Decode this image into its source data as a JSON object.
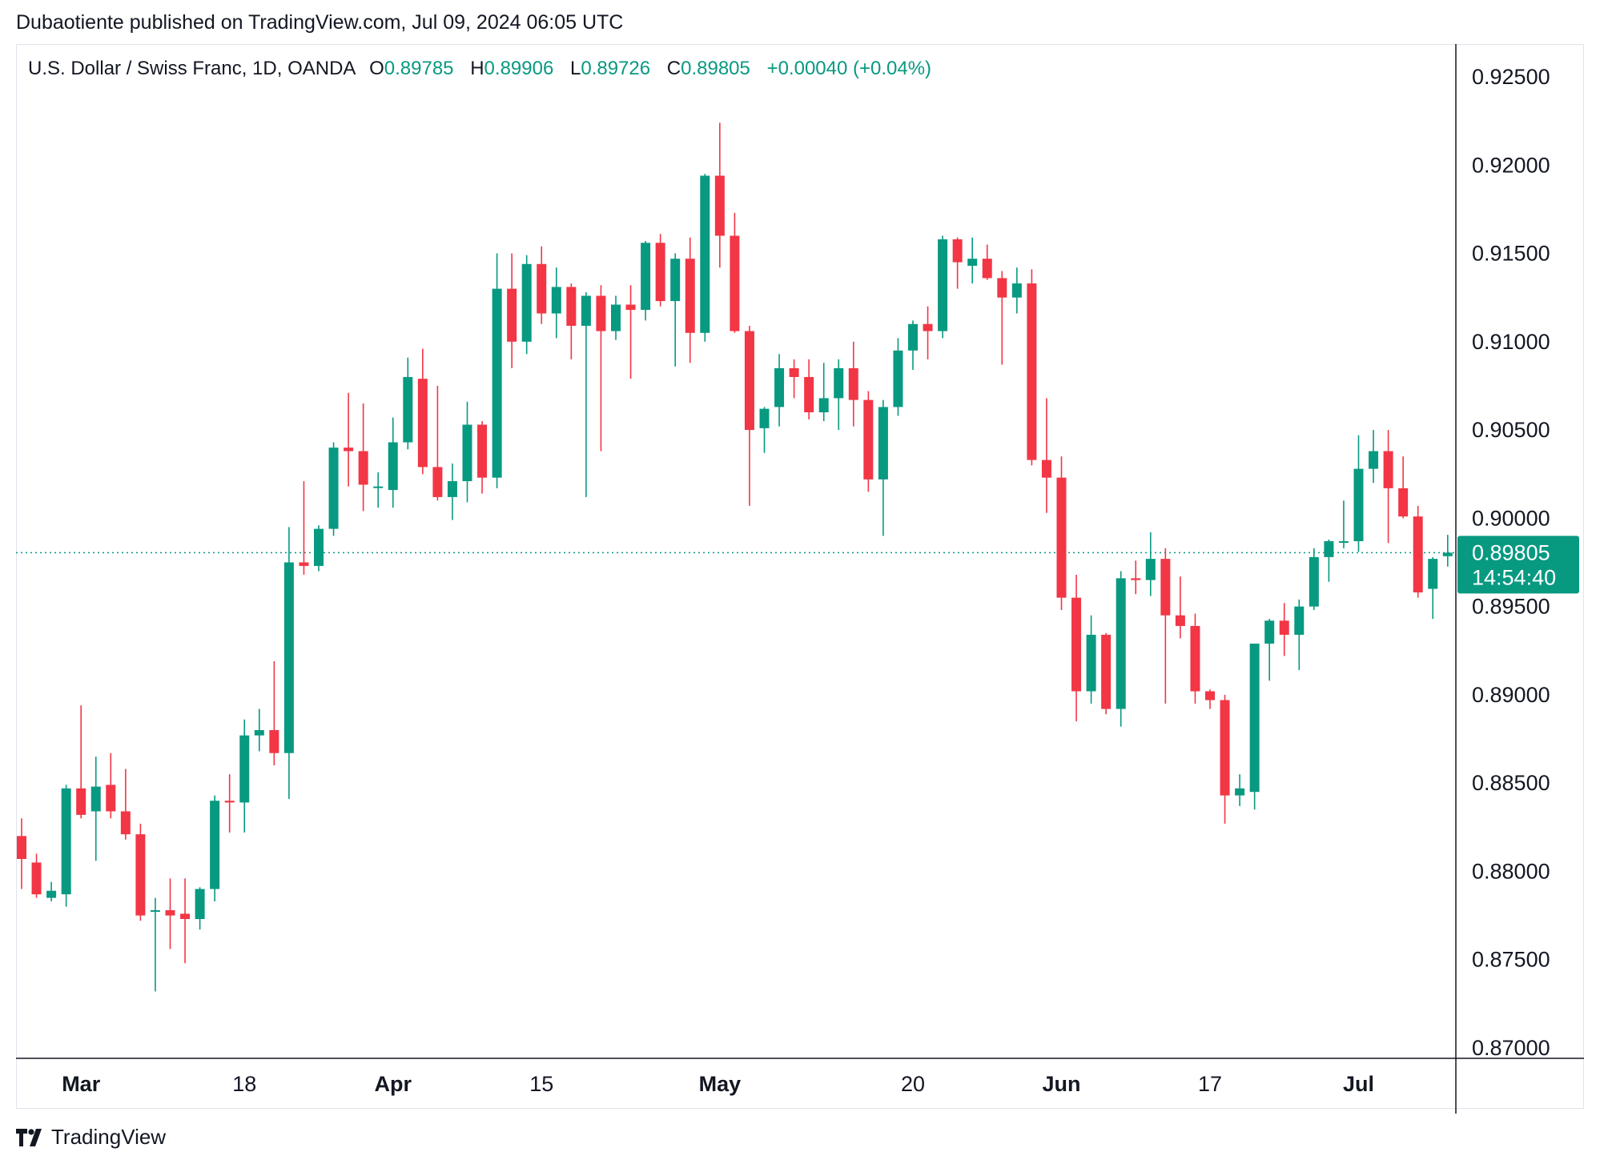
{
  "header": {
    "published": "Dubaotiente published on TradingView.com, Jul 09, 2024 06:05 UTC"
  },
  "legend": {
    "symbol": "U.S. Dollar / Swiss Franc, 1D, OANDA",
    "open_label": "O",
    "open": "0.89785",
    "high_label": "H",
    "high": "0.89906",
    "low_label": "L",
    "low": "0.89726",
    "close_label": "C",
    "close": "0.89805",
    "change": "+0.00040 (+0.04%)"
  },
  "price_tag": {
    "price": "0.89805",
    "countdown": "14:54:40"
  },
  "brand": {
    "name": "TradingView"
  },
  "colors": {
    "up": "#089981",
    "down": "#f23645",
    "grid": "#e0e3eb",
    "axis": "#131722"
  },
  "chart_data": {
    "type": "candlestick",
    "symbol": "U.S. Dollar / Swiss Franc",
    "interval": "1D",
    "source": "OANDA",
    "ylim": [
      0.87,
      0.9264
    ],
    "y_ticks": [
      "0.92500",
      "0.92000",
      "0.91500",
      "0.91000",
      "0.90500",
      "0.90000",
      "0.89500",
      "0.89000",
      "0.88500",
      "0.88000",
      "0.87500",
      "0.87000"
    ],
    "x_ticks": [
      {
        "label": "Mar",
        "index": 4,
        "bold": true
      },
      {
        "label": "18",
        "index": 15,
        "bold": false
      },
      {
        "label": "Apr",
        "index": 25,
        "bold": true
      },
      {
        "label": "15",
        "index": 35,
        "bold": false
      },
      {
        "label": "May",
        "index": 47,
        "bold": true
      },
      {
        "label": "20",
        "index": 60,
        "bold": false
      },
      {
        "label": "Jun",
        "index": 70,
        "bold": true
      },
      {
        "label": "17",
        "index": 80,
        "bold": false
      },
      {
        "label": "Jul",
        "index": 90,
        "bold": true
      }
    ],
    "last_price": 0.89805,
    "candles": [
      [
        0.882,
        0.883,
        0.879,
        0.8807
      ],
      [
        0.8805,
        0.881,
        0.8785,
        0.8787
      ],
      [
        0.8785,
        0.8794,
        0.8783,
        0.8789
      ],
      [
        0.8787,
        0.8849,
        0.878,
        0.8847
      ],
      [
        0.8847,
        0.8894,
        0.883,
        0.8832
      ],
      [
        0.8834,
        0.8865,
        0.8806,
        0.8848
      ],
      [
        0.8849,
        0.8867,
        0.883,
        0.8834
      ],
      [
        0.8834,
        0.8858,
        0.8818,
        0.8821
      ],
      [
        0.8821,
        0.8827,
        0.8772,
        0.8775
      ],
      [
        0.8778,
        0.8785,
        0.8732,
        0.8778
      ],
      [
        0.8778,
        0.8796,
        0.8756,
        0.8775
      ],
      [
        0.8776,
        0.8796,
        0.8748,
        0.8773
      ],
      [
        0.8773,
        0.8791,
        0.8767,
        0.879
      ],
      [
        0.879,
        0.8843,
        0.8783,
        0.884
      ],
      [
        0.884,
        0.8855,
        0.8822,
        0.8839
      ],
      [
        0.8839,
        0.8886,
        0.8822,
        0.8877
      ],
      [
        0.8877,
        0.8892,
        0.8868,
        0.888
      ],
      [
        0.888,
        0.8919,
        0.886,
        0.8867
      ],
      [
        0.8867,
        0.8995,
        0.8841,
        0.8975
      ],
      [
        0.8975,
        0.9021,
        0.8968,
        0.8973
      ],
      [
        0.8973,
        0.8996,
        0.897,
        0.8994
      ],
      [
        0.8994,
        0.9043,
        0.899,
        0.904
      ],
      [
        0.904,
        0.9071,
        0.9018,
        0.9038
      ],
      [
        0.9038,
        0.9065,
        0.9004,
        0.9019
      ],
      [
        0.9018,
        0.9026,
        0.9006,
        0.9018
      ],
      [
        0.9016,
        0.9057,
        0.9006,
        0.9043
      ],
      [
        0.9043,
        0.9091,
        0.9039,
        0.908
      ],
      [
        0.9079,
        0.9096,
        0.9025,
        0.9029
      ],
      [
        0.9029,
        0.9075,
        0.901,
        0.9012
      ],
      [
        0.9012,
        0.9031,
        0.8999,
        0.9021
      ],
      [
        0.9021,
        0.9066,
        0.9009,
        0.9053
      ],
      [
        0.9053,
        0.9055,
        0.9014,
        0.9023
      ],
      [
        0.9023,
        0.915,
        0.9017,
        0.913
      ],
      [
        0.913,
        0.915,
        0.9085,
        0.91
      ],
      [
        0.91,
        0.9149,
        0.9093,
        0.9144
      ],
      [
        0.9144,
        0.9154,
        0.911,
        0.9116
      ],
      [
        0.9116,
        0.9142,
        0.9102,
        0.9131
      ],
      [
        0.9131,
        0.9133,
        0.909,
        0.9109
      ],
      [
        0.9109,
        0.9128,
        0.9012,
        0.9126
      ],
      [
        0.9126,
        0.9132,
        0.9038,
        0.9106
      ],
      [
        0.9106,
        0.9126,
        0.9101,
        0.9121
      ],
      [
        0.9121,
        0.9132,
        0.9079,
        0.9118
      ],
      [
        0.9118,
        0.9157,
        0.9112,
        0.9156
      ],
      [
        0.9156,
        0.9161,
        0.912,
        0.9123
      ],
      [
        0.9123,
        0.915,
        0.9086,
        0.9147
      ],
      [
        0.9147,
        0.9159,
        0.9088,
        0.9105
      ],
      [
        0.9105,
        0.9195,
        0.91,
        0.9194
      ],
      [
        0.9194,
        0.9224,
        0.9142,
        0.916
      ],
      [
        0.916,
        0.9173,
        0.9105,
        0.9106
      ],
      [
        0.9106,
        0.9109,
        0.9007,
        0.905
      ],
      [
        0.9051,
        0.9063,
        0.9037,
        0.9062
      ],
      [
        0.9063,
        0.9093,
        0.9052,
        0.9085
      ],
      [
        0.9085,
        0.909,
        0.9068,
        0.908
      ],
      [
        0.908,
        0.909,
        0.9056,
        0.906
      ],
      [
        0.906,
        0.9088,
        0.9055,
        0.9068
      ],
      [
        0.9068,
        0.909,
        0.905,
        0.9085
      ],
      [
        0.9085,
        0.91,
        0.9052,
        0.9067
      ],
      [
        0.9067,
        0.9072,
        0.9015,
        0.9022
      ],
      [
        0.9022,
        0.9067,
        0.899,
        0.9063
      ],
      [
        0.9063,
        0.9102,
        0.9058,
        0.9095
      ],
      [
        0.9095,
        0.9112,
        0.9084,
        0.911
      ],
      [
        0.911,
        0.912,
        0.909,
        0.9106
      ],
      [
        0.9106,
        0.916,
        0.9102,
        0.9158
      ],
      [
        0.9158,
        0.9159,
        0.913,
        0.9145
      ],
      [
        0.9143,
        0.9159,
        0.9133,
        0.9147
      ],
      [
        0.9147,
        0.9155,
        0.9135,
        0.9136
      ],
      [
        0.9136,
        0.914,
        0.9087,
        0.9125
      ],
      [
        0.9125,
        0.9142,
        0.9116,
        0.9133
      ],
      [
        0.9133,
        0.9141,
        0.903,
        0.9033
      ],
      [
        0.9033,
        0.9068,
        0.9003,
        0.9023
      ],
      [
        0.9023,
        0.9035,
        0.8948,
        0.8955
      ],
      [
        0.8955,
        0.8968,
        0.8885,
        0.8902
      ],
      [
        0.8902,
        0.8945,
        0.8895,
        0.8934
      ],
      [
        0.8934,
        0.8935,
        0.8889,
        0.8892
      ],
      [
        0.8892,
        0.897,
        0.8882,
        0.8966
      ],
      [
        0.8966,
        0.8976,
        0.8957,
        0.8965
      ],
      [
        0.8965,
        0.8992,
        0.8956,
        0.8977
      ],
      [
        0.8977,
        0.8983,
        0.8895,
        0.8945
      ],
      [
        0.8945,
        0.8967,
        0.8932,
        0.8939
      ],
      [
        0.8939,
        0.8946,
        0.8895,
        0.8902
      ],
      [
        0.8902,
        0.8903,
        0.8892,
        0.8897
      ],
      [
        0.8897,
        0.89,
        0.8827,
        0.8843
      ],
      [
        0.8843,
        0.8855,
        0.8837,
        0.8847
      ],
      [
        0.8845,
        0.8929,
        0.8835,
        0.8929
      ],
      [
        0.8929,
        0.8943,
        0.8908,
        0.8942
      ],
      [
        0.8942,
        0.8952,
        0.8922,
        0.8934
      ],
      [
        0.8934,
        0.8954,
        0.8914,
        0.895
      ],
      [
        0.895,
        0.8983,
        0.8948,
        0.8978
      ],
      [
        0.8978,
        0.8988,
        0.8964,
        0.8987
      ],
      [
        0.8987,
        0.901,
        0.8983,
        0.8987
      ],
      [
        0.8987,
        0.9047,
        0.8981,
        0.9028
      ],
      [
        0.9028,
        0.905,
        0.902,
        0.9038
      ],
      [
        0.9038,
        0.905,
        0.8986,
        0.9017
      ],
      [
        0.9017,
        0.9035,
        0.9,
        0.9001
      ],
      [
        0.9001,
        0.9007,
        0.8955,
        0.8958
      ],
      [
        0.896,
        0.8978,
        0.8943,
        0.8977
      ],
      [
        0.89785,
        0.89906,
        0.89726,
        0.89805
      ]
    ]
  }
}
